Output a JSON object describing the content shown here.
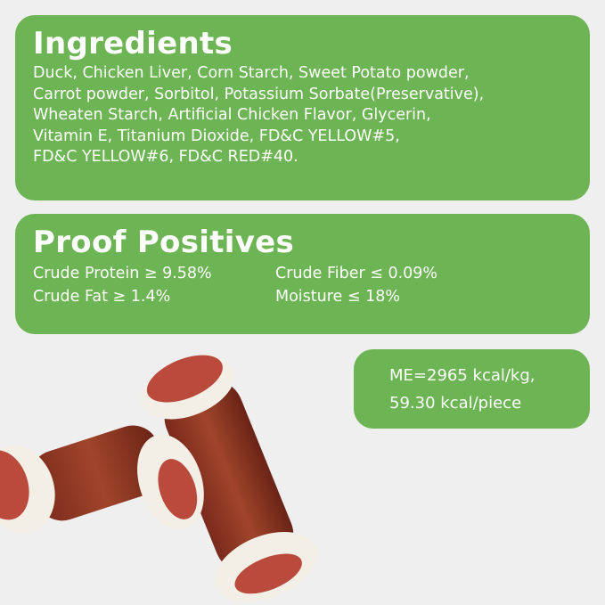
{
  "ingredients": {
    "title": "Ingredients",
    "lines": [
      "Duck, Chicken Liver, Corn Starch, Sweet Potato powder,",
      "Carrot powder, Sorbitol, Potassium Sorbate(Preservative),",
      "Wheaten Starch, Artificial Chicken Flavor,  Glycerin,",
      "Vitamin E,  Titanium Dioxide, FD&C YELLOW#5,",
      "FD&C YELLOW#6, FD&C RED#40."
    ]
  },
  "proof": {
    "title": "Proof Positives",
    "items": [
      "Crude Protein ≥ 9.58%",
      "Crude Fiber ≤ 0.09%",
      "Crude Fat ≥ 1.4%",
      "Moisture ≤ 18%"
    ]
  },
  "energy": {
    "line1": "ME=2965 kcal/kg,",
    "line2": "59.30 kcal/piece"
  },
  "colors": {
    "accent": "#6db554",
    "background": "#efefef"
  }
}
